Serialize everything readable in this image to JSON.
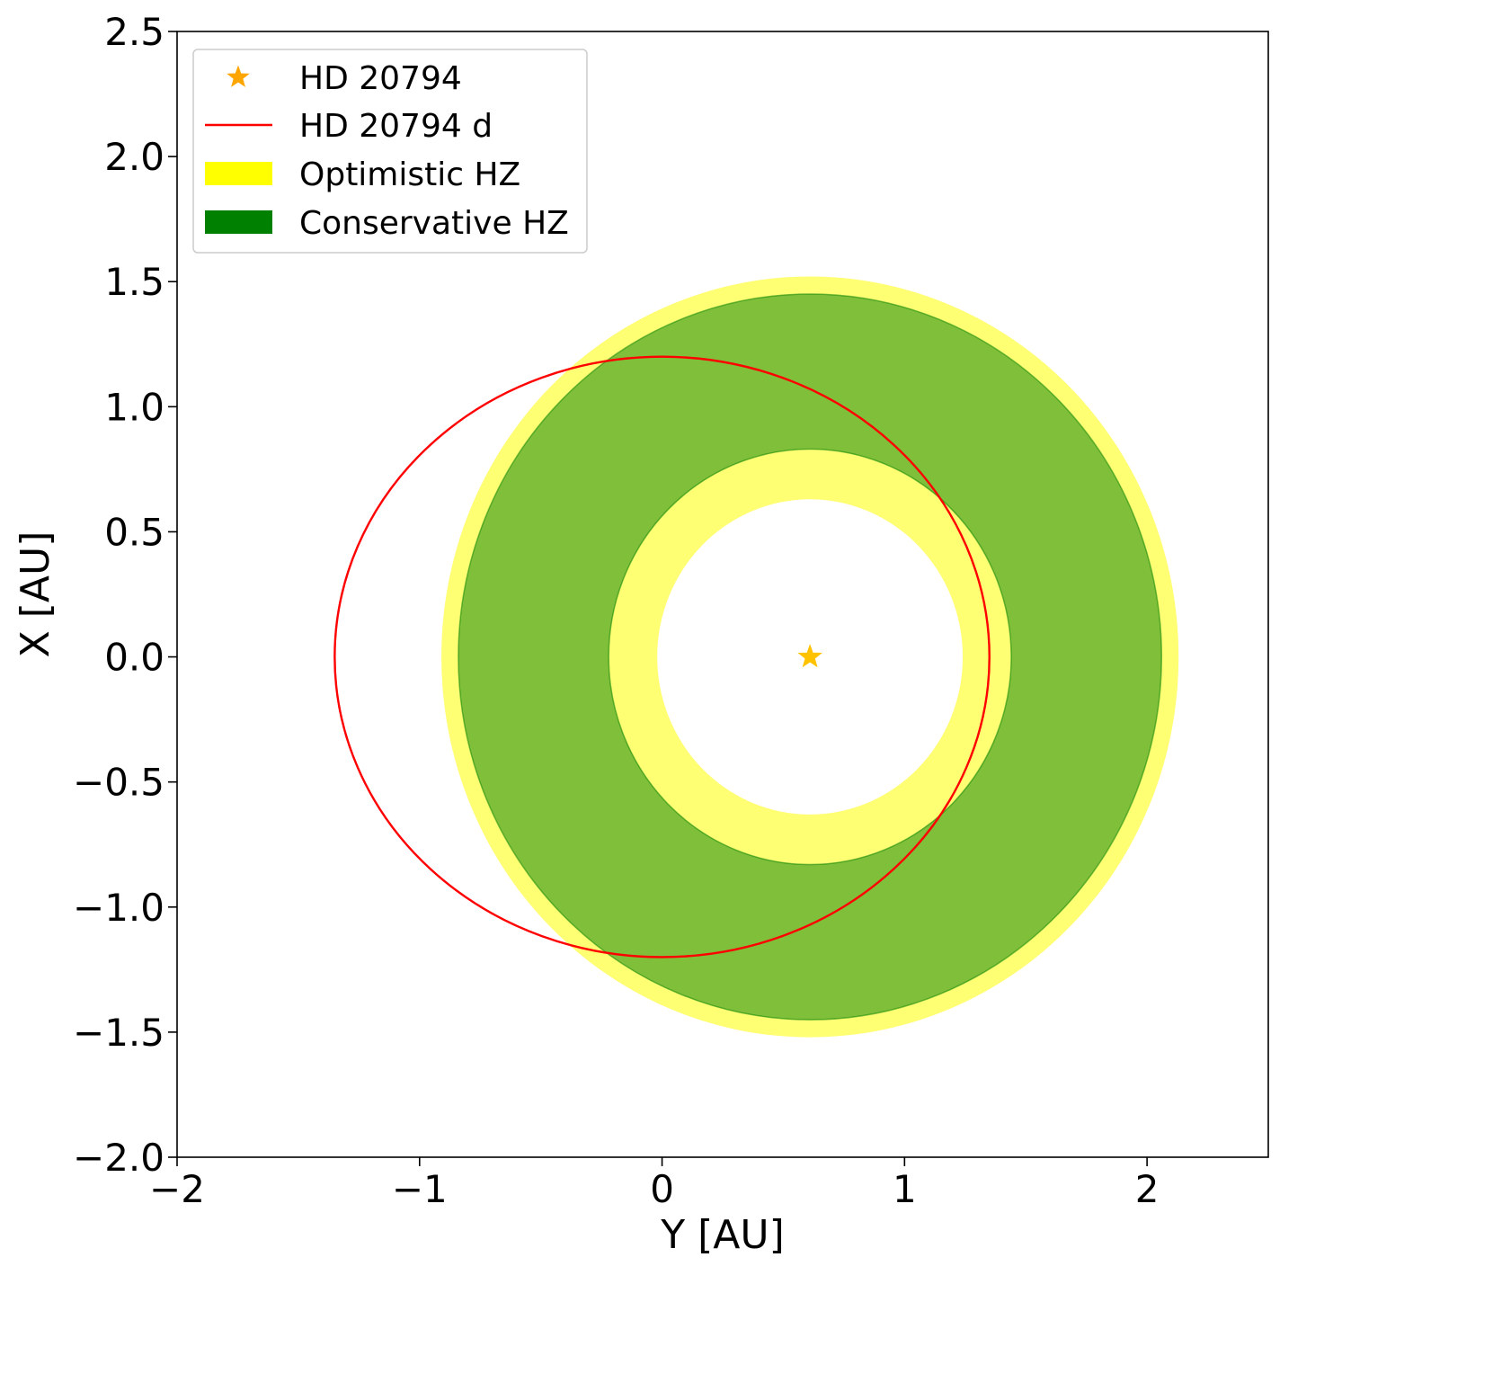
{
  "chart_data": {
    "type": "scatter",
    "title": "",
    "xlabel": "Y [AU]",
    "ylabel": "X [AU]",
    "xlim": [
      -2,
      2.5
    ],
    "ylim": [
      -2.0,
      2.5
    ],
    "xticks": [
      -2,
      -1,
      0,
      1,
      2
    ],
    "xtick_labels": [
      "−2",
      "−1",
      "0",
      "1",
      "2"
    ],
    "yticks": [
      -2.0,
      -1.5,
      -1.0,
      -0.5,
      0.0,
      0.5,
      1.0,
      1.5,
      2.0,
      2.5
    ],
    "ytick_labels": [
      "−2.0",
      "−1.5",
      "−1.0",
      "−0.5",
      "0.0",
      "0.5",
      "1.0",
      "1.5",
      "2.0",
      "2.5"
    ],
    "grid": false,
    "legend_position": "top-left",
    "series": [
      {
        "name": "HD 20794",
        "kind": "star-marker",
        "x": 0.61,
        "y": 0.0,
        "color": "#ffc200"
      },
      {
        "name": "HD 20794 d",
        "kind": "orbit-ellipse",
        "center": [
          0.0,
          0.0
        ],
        "semi_axis_x": 1.35,
        "semi_axis_y": 1.2,
        "color": "#ff0000"
      },
      {
        "name": "Optimistic HZ",
        "kind": "annulus",
        "center": [
          0.61,
          0.0
        ],
        "inner_radius": 0.63,
        "outer_radius": 1.52,
        "color": "#ffff00",
        "opacity": 0.55
      },
      {
        "name": "Conservative HZ",
        "kind": "annulus",
        "center": [
          0.61,
          0.0
        ],
        "inner_radius": 0.83,
        "outer_radius": 1.45,
        "color": "#008000",
        "opacity": 0.5
      }
    ]
  }
}
